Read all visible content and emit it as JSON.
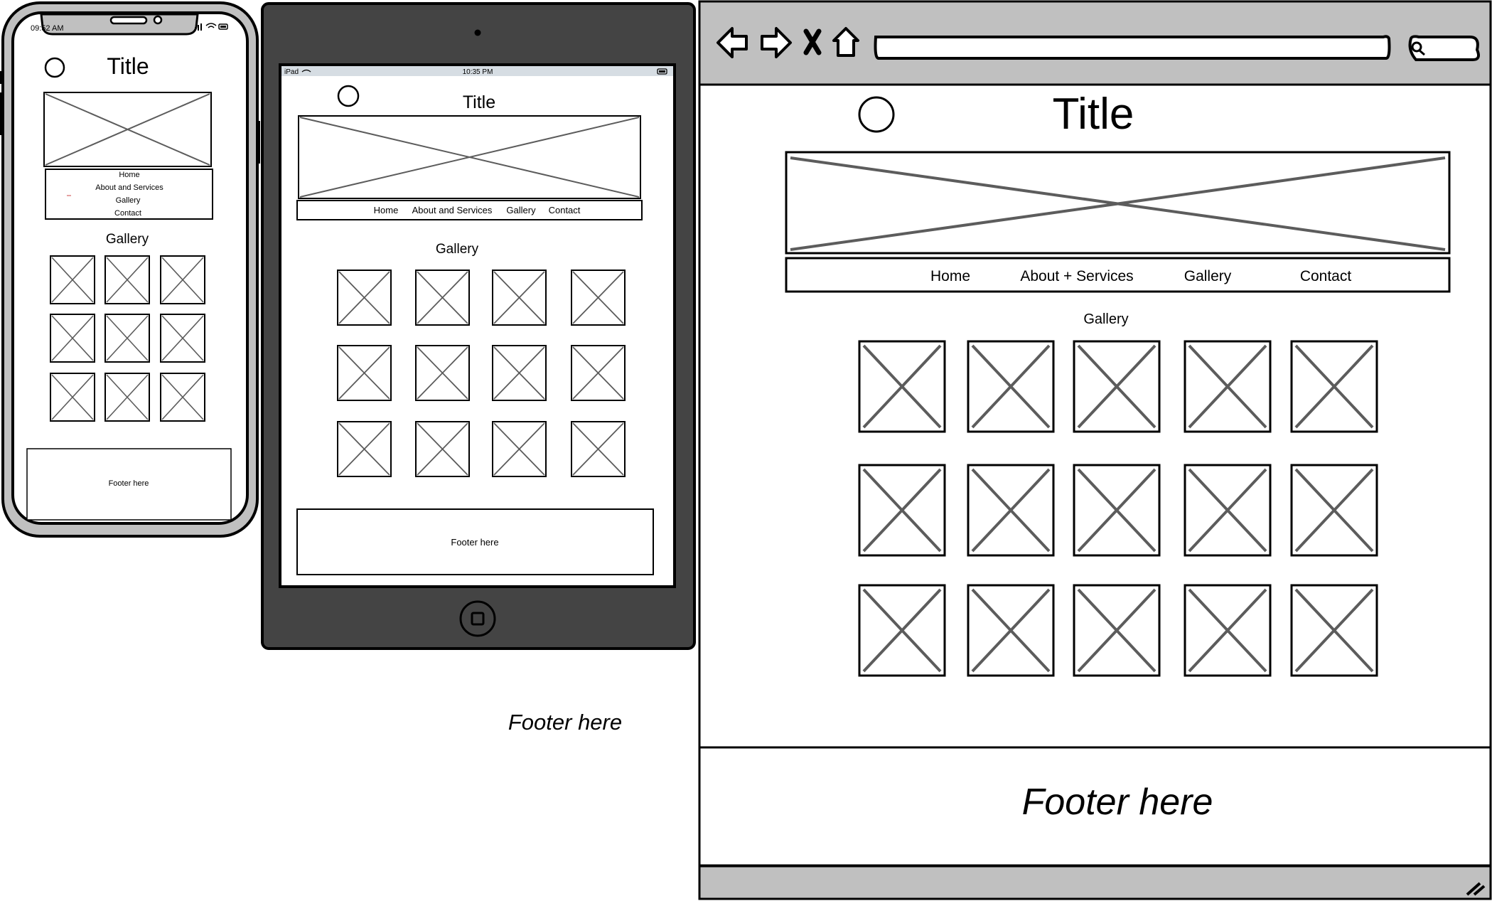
{
  "phone": {
    "status_time": "09:52 AM",
    "title": "Title",
    "nav_items": [
      "Home",
      "About and Services",
      "Gallery",
      "Contact"
    ],
    "gallery_heading": "Gallery",
    "gallery_rows": 3,
    "gallery_cols": 3,
    "footer": "Footer here"
  },
  "tablet": {
    "status_carrier": "iPad",
    "status_time": "10:35 PM",
    "title": "Title",
    "nav_items": [
      "Home",
      "About and Services",
      "Gallery",
      "Contact"
    ],
    "gallery_heading": "Gallery",
    "gallery_rows": 3,
    "gallery_cols": 4,
    "footer": "Footer here"
  },
  "floating_label": "Footer here",
  "desktop": {
    "title": "Title",
    "nav_items": [
      "Home",
      "About + Services",
      "Gallery",
      "Contact"
    ],
    "gallery_heading": "Gallery",
    "gallery_rows": 3,
    "gallery_cols": 5,
    "footer": "Footer here"
  },
  "colors": {
    "device_frame": "#c0c0c0",
    "tablet_body": "#444444",
    "placeholder_stroke": "#5c5c5c",
    "tablet_status_bar": "#d6dde3"
  }
}
